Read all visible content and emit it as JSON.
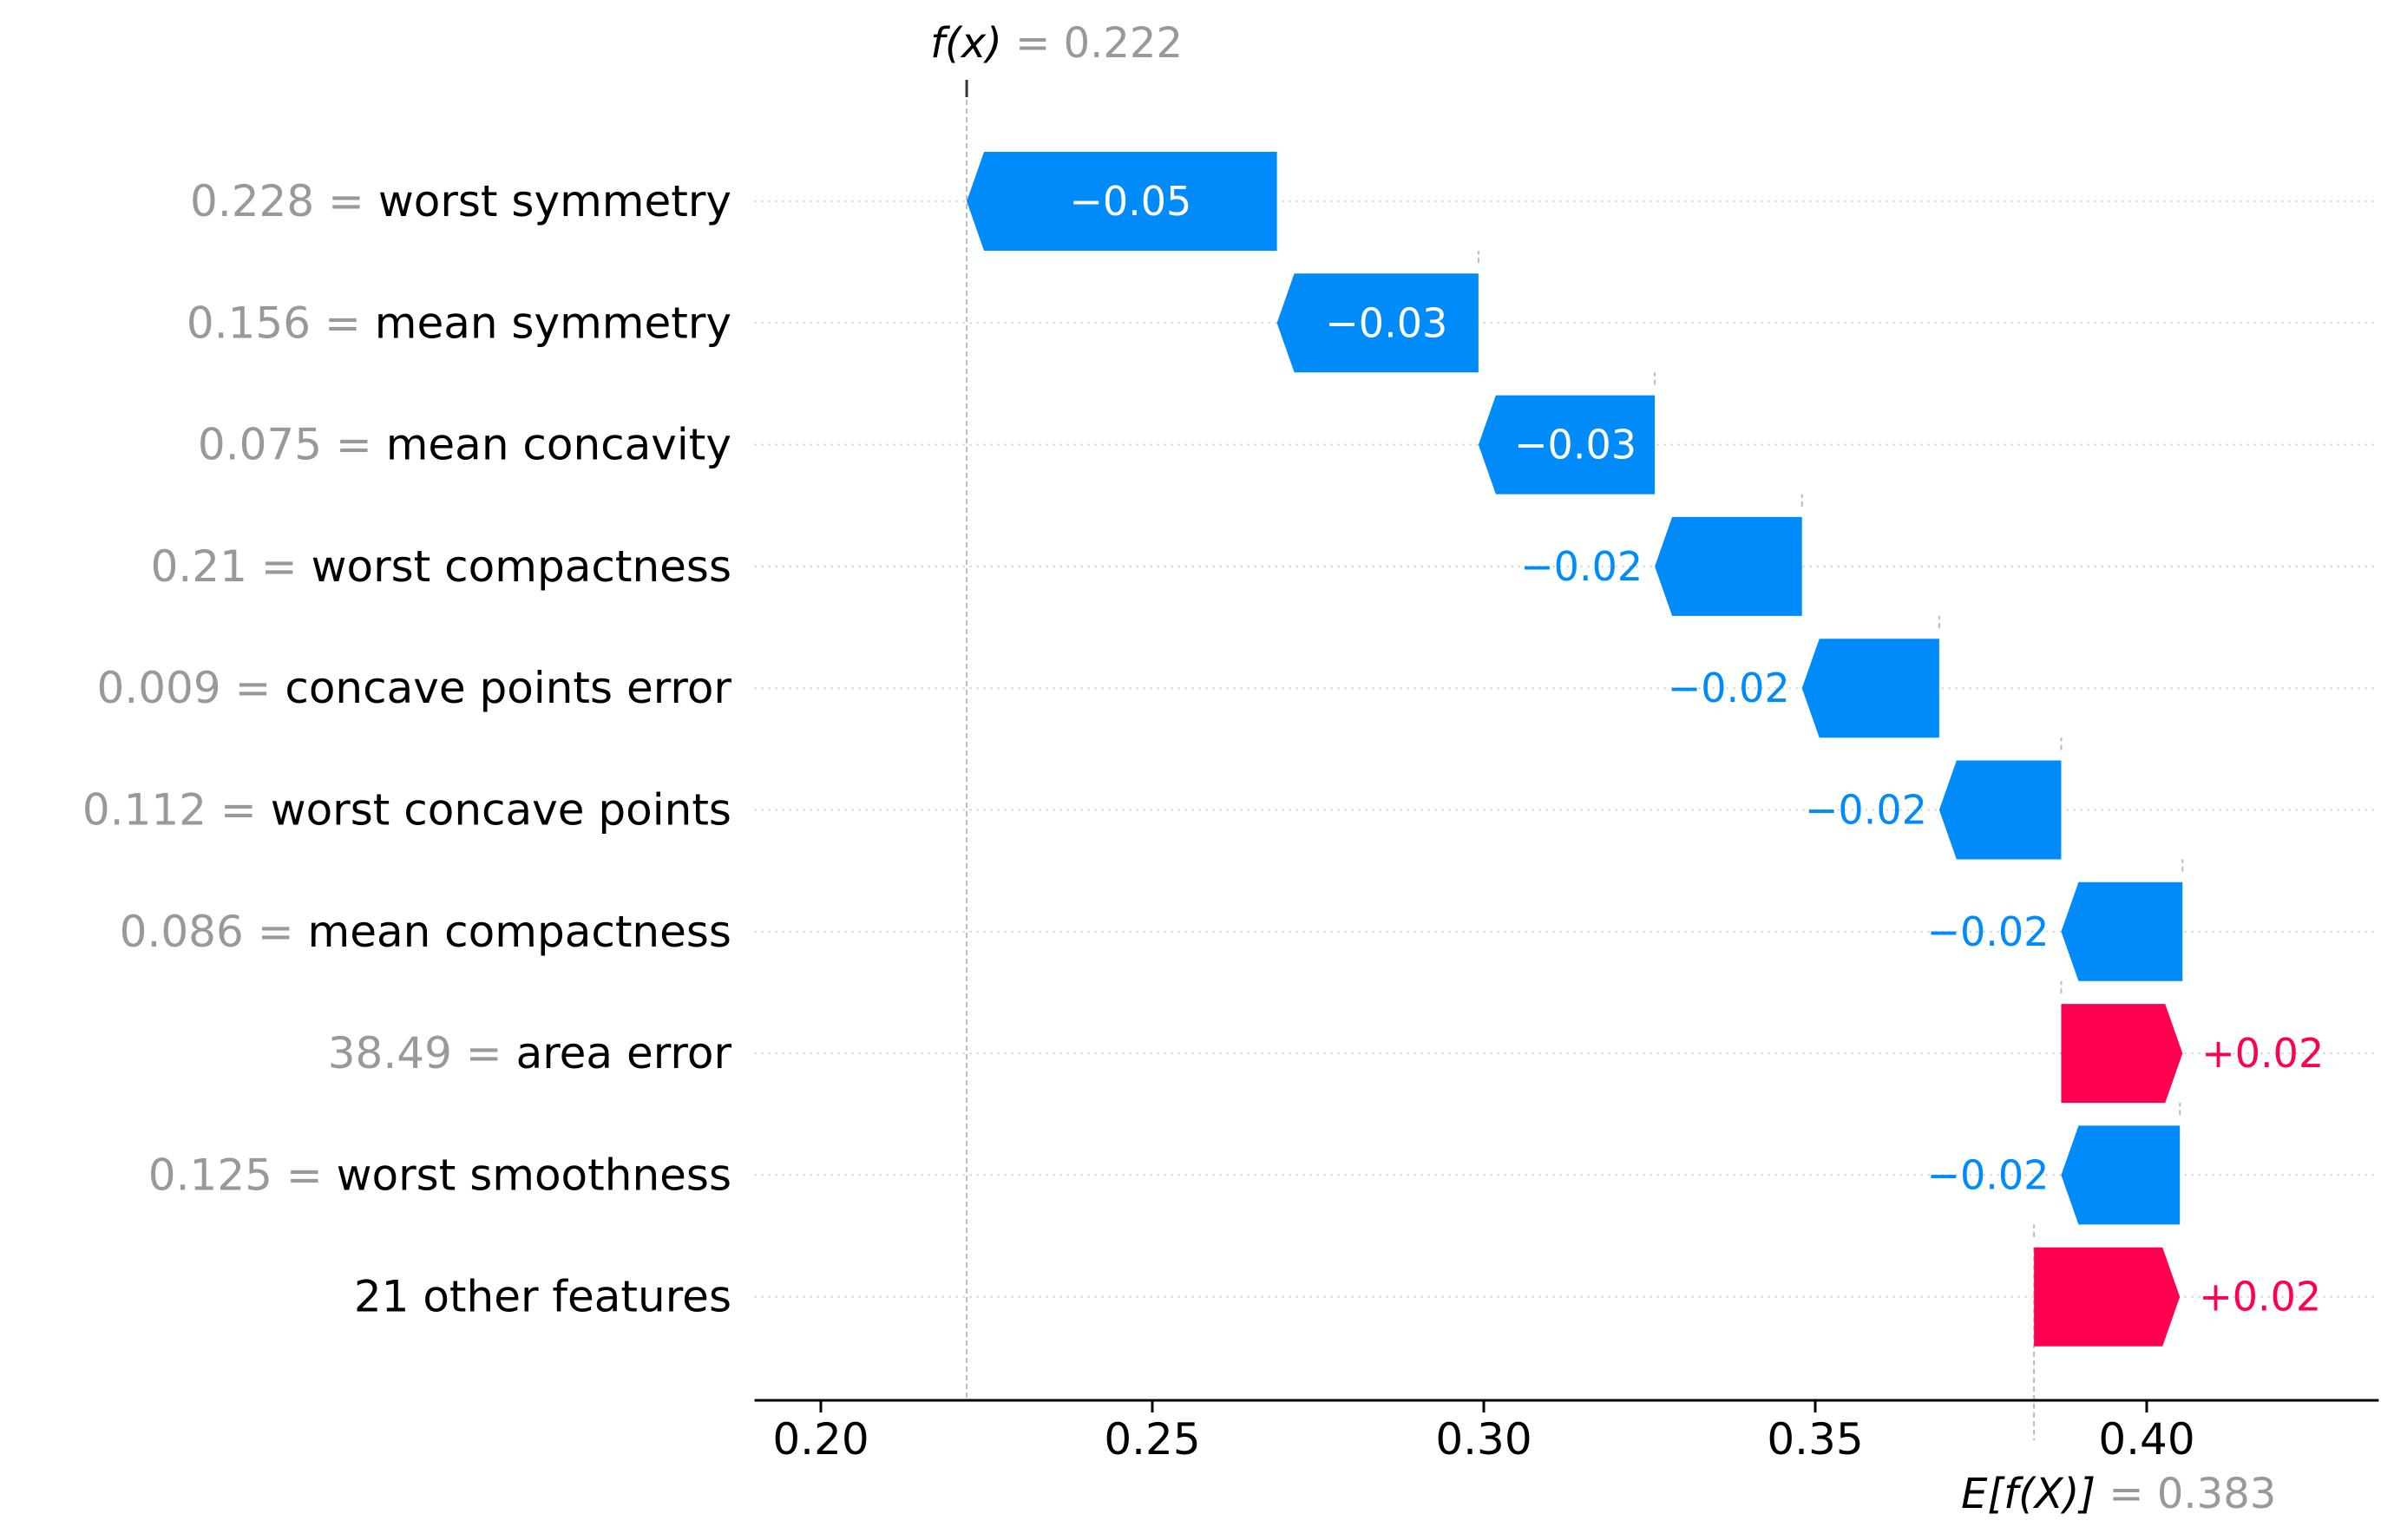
{
  "colors": {
    "negative": "#008bfb",
    "positive": "#ff0051",
    "muted": "#999999",
    "text": "#000000"
  },
  "chart_data": {
    "type": "waterfall",
    "fx": {
      "math": "f(x)",
      "value": "= 0.222",
      "x": 0.222
    },
    "ex": {
      "math": "E[f(X)]",
      "value": "= 0.383",
      "x": 0.383
    },
    "xlim": [
      0.19,
      0.435
    ],
    "xticks": [
      {
        "value": 0.2,
        "label": "0.20"
      },
      {
        "value": 0.25,
        "label": "0.25"
      },
      {
        "value": 0.3,
        "label": "0.30"
      },
      {
        "value": 0.35,
        "label": "0.35"
      },
      {
        "value": 0.4,
        "label": "0.40"
      }
    ],
    "features": [
      {
        "value": "0.228",
        "name": "worst symmetry",
        "start": 0.2688,
        "end": 0.222,
        "label": "−0.05"
      },
      {
        "value": "0.156",
        "name": "mean symmetry",
        "start": 0.2992,
        "end": 0.2688,
        "label": "−0.03"
      },
      {
        "value": "0.075",
        "name": "mean concavity",
        "start": 0.3258,
        "end": 0.2992,
        "label": "−0.03"
      },
      {
        "value": "0.21",
        "name": "worst compactness",
        "start": 0.348,
        "end": 0.3258,
        "label": "−0.02"
      },
      {
        "value": "0.009",
        "name": "concave points error",
        "start": 0.3687,
        "end": 0.348,
        "label": "−0.02"
      },
      {
        "value": "0.112",
        "name": "worst concave points",
        "start": 0.3871,
        "end": 0.3687,
        "label": "−0.02"
      },
      {
        "value": "0.086",
        "name": "mean compactness",
        "start": 0.4054,
        "end": 0.3871,
        "label": "−0.02"
      },
      {
        "value": "38.49",
        "name": "area error",
        "start": 0.3871,
        "end": 0.4054,
        "label": "+0.02"
      },
      {
        "value": "0.125",
        "name": "worst smoothness",
        "start": 0.405,
        "end": 0.3871,
        "label": "−0.02"
      },
      {
        "value": "",
        "name": "21 other features",
        "start": 0.383,
        "end": 0.405,
        "label": "+0.02"
      }
    ]
  }
}
